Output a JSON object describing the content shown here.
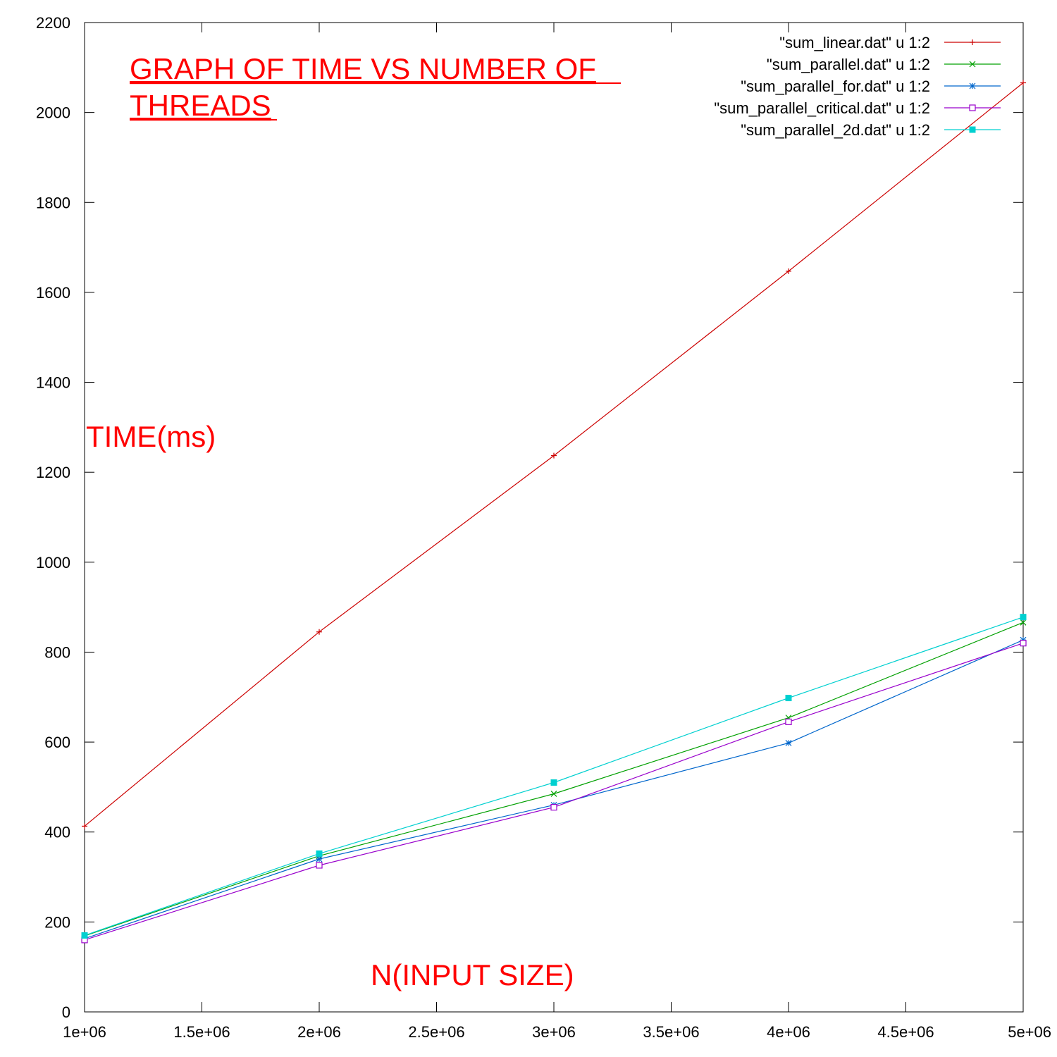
{
  "chart_data": {
    "type": "line",
    "title": "GRAPH OF TIME VS NUMBER OF THREADS",
    "title_lines": [
      "GRAPH OF TIME VS NUMBER OF",
      "THREADS"
    ],
    "xlabel": "N(INPUT SIZE)",
    "ylabel": "TIME(ms)",
    "xlim": [
      1000000,
      5000000
    ],
    "ylim": [
      0,
      2200
    ],
    "x_ticks": [
      {
        "value": 1000000,
        "label": "1e+06"
      },
      {
        "value": 1500000,
        "label": "1.5e+06"
      },
      {
        "value": 2000000,
        "label": "2e+06"
      },
      {
        "value": 2500000,
        "label": "2.5e+06"
      },
      {
        "value": 3000000,
        "label": "3e+06"
      },
      {
        "value": 3500000,
        "label": "3.5e+06"
      },
      {
        "value": 4000000,
        "label": "4e+06"
      },
      {
        "value": 4500000,
        "label": "4.5e+06"
      },
      {
        "value": 5000000,
        "label": "5e+06"
      }
    ],
    "y_ticks": [
      {
        "value": 0,
        "label": "0"
      },
      {
        "value": 200,
        "label": "200"
      },
      {
        "value": 400,
        "label": "400"
      },
      {
        "value": 600,
        "label": "600"
      },
      {
        "value": 800,
        "label": "800"
      },
      {
        "value": 1000,
        "label": "1000"
      },
      {
        "value": 1200,
        "label": "1200"
      },
      {
        "value": 1400,
        "label": "1400"
      },
      {
        "value": 1600,
        "label": "1600"
      },
      {
        "value": 1800,
        "label": "1800"
      },
      {
        "value": 2000,
        "label": "2000"
      },
      {
        "value": 2200,
        "label": "2200"
      }
    ],
    "grid": false,
    "legend_position": "top-right",
    "x": [
      1000000,
      2000000,
      3000000,
      4000000,
      5000000
    ],
    "series": [
      {
        "name": "\"sum_linear.dat\" u 1:2",
        "color": "#cc0000",
        "marker": "plus",
        "values": [
          413,
          845,
          1237,
          1647,
          2066
        ]
      },
      {
        "name": "\"sum_parallel.dat\" u 1:2",
        "color": "#00a000",
        "marker": "cross",
        "values": [
          169,
          347,
          485,
          654,
          866
        ]
      },
      {
        "name": "\"sum_parallel_for.dat\" u 1:2",
        "color": "#0066cc",
        "marker": "star",
        "values": [
          163,
          340,
          460,
          598,
          827
        ]
      },
      {
        "name": "\"sum_parallel_critical.dat\" u 1:2",
        "color": "#9900cc",
        "marker": "square-open",
        "values": [
          160,
          326,
          455,
          645,
          820
        ]
      },
      {
        "name": "\"sum_parallel_2d.dat\" u 1:2",
        "color": "#00d0d0",
        "marker": "square-filled",
        "values": [
          170,
          352,
          510,
          698,
          878
        ]
      }
    ]
  }
}
